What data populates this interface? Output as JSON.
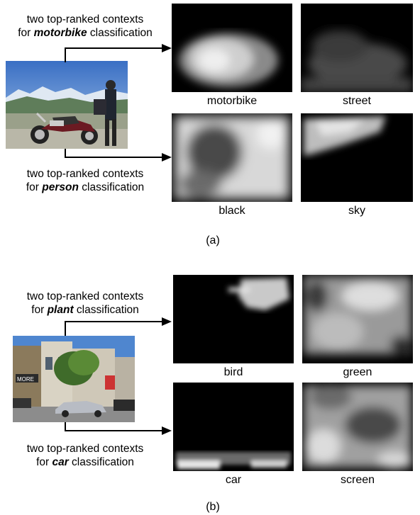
{
  "panel_a": {
    "label": "(a)",
    "top_text": {
      "line1": "two top-ranked contexts",
      "pre": "for ",
      "cls": "motorbike",
      "post": " classification"
    },
    "bottom_text": {
      "line1": "two top-ranked contexts",
      "pre": "for ",
      "cls": "person",
      "post": " classification"
    },
    "maps": [
      "motorbike",
      "street",
      "black",
      "sky"
    ]
  },
  "panel_b": {
    "label": "(b)",
    "top_text": {
      "line1": "two top-ranked contexts",
      "pre": "for ",
      "cls": "plant",
      "post": " classification"
    },
    "bottom_text": {
      "line1": "two top-ranked contexts",
      "pre": "for ",
      "cls": "car",
      "post": " classification"
    },
    "maps": [
      "bird",
      "green",
      "car",
      "screen"
    ],
    "store_sign": "MORE"
  }
}
